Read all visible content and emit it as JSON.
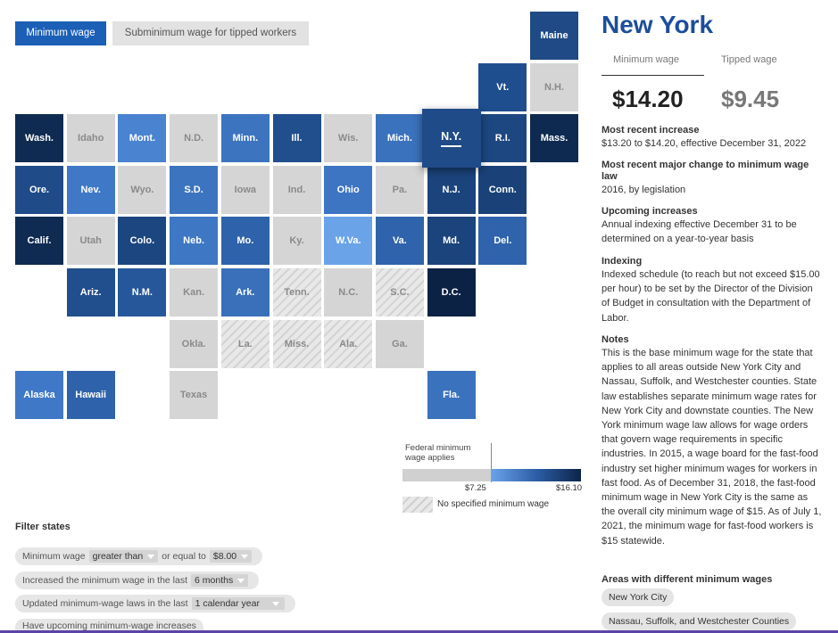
{
  "toggles": {
    "minimum": "Minimum wage",
    "tipped": "Subminimum wage for tipped workers"
  },
  "colors": {
    "accent": "#1b5fb6",
    "title": "#1b4e9b",
    "gray_tile": "#d5d5d5"
  },
  "states": [
    {
      "abbr": "Maine",
      "col": 10,
      "row": 0,
      "fill": "#1f4a86",
      "type": "color"
    },
    {
      "abbr": "Vt.",
      "col": 9,
      "row": 1,
      "fill": "#1f4e8f",
      "type": "color"
    },
    {
      "abbr": "N.H.",
      "col": 10,
      "row": 1,
      "fill": "#d5d5d5",
      "type": "gray"
    },
    {
      "abbr": "Wash.",
      "col": 0,
      "row": 2,
      "fill": "#0f2b52",
      "type": "color"
    },
    {
      "abbr": "Idaho",
      "col": 1,
      "row": 2,
      "fill": "#d5d5d5",
      "type": "gray"
    },
    {
      "abbr": "Mont.",
      "col": 2,
      "row": 2,
      "fill": "#4a83d0",
      "type": "color"
    },
    {
      "abbr": "N.D.",
      "col": 3,
      "row": 2,
      "fill": "#d5d5d5",
      "type": "gray"
    },
    {
      "abbr": "Minn.",
      "col": 4,
      "row": 2,
      "fill": "#3d74bf",
      "type": "color"
    },
    {
      "abbr": "Ill.",
      "col": 5,
      "row": 2,
      "fill": "#214e8c",
      "type": "color"
    },
    {
      "abbr": "Wis.",
      "col": 6,
      "row": 2,
      "fill": "#d5d5d5",
      "type": "gray"
    },
    {
      "abbr": "Mich.",
      "col": 7,
      "row": 2,
      "fill": "#3b72bd",
      "type": "color"
    },
    {
      "abbr": "N.Y.",
      "col": 8,
      "row": 2,
      "fill": "#1f4b89",
      "type": "color",
      "selected": true
    },
    {
      "abbr": "R.I.",
      "col": 9,
      "row": 2,
      "fill": "#1d4780",
      "type": "color"
    },
    {
      "abbr": "Mass.",
      "col": 10,
      "row": 2,
      "fill": "#0e2a50",
      "type": "color"
    },
    {
      "abbr": "Ore.",
      "col": 0,
      "row": 3,
      "fill": "#1f4b89",
      "type": "color"
    },
    {
      "abbr": "Nev.",
      "col": 1,
      "row": 3,
      "fill": "#3f78c6",
      "type": "color"
    },
    {
      "abbr": "Wyo.",
      "col": 2,
      "row": 3,
      "fill": "#d5d5d5",
      "type": "gray"
    },
    {
      "abbr": "S.D.",
      "col": 3,
      "row": 3,
      "fill": "#3d74bf",
      "type": "color"
    },
    {
      "abbr": "Iowa",
      "col": 4,
      "row": 3,
      "fill": "#d5d5d5",
      "type": "gray"
    },
    {
      "abbr": "Ind.",
      "col": 5,
      "row": 3,
      "fill": "#d5d5d5",
      "type": "gray"
    },
    {
      "abbr": "Ohio",
      "col": 6,
      "row": 3,
      "fill": "#3d75c2",
      "type": "color"
    },
    {
      "abbr": "Pa.",
      "col": 7,
      "row": 3,
      "fill": "#d5d5d5",
      "type": "gray"
    },
    {
      "abbr": "N.J.",
      "col": 8,
      "row": 3,
      "fill": "#1b447c",
      "type": "color"
    },
    {
      "abbr": "Conn.",
      "col": 9,
      "row": 3,
      "fill": "#1a4279",
      "type": "color"
    },
    {
      "abbr": "Calif.",
      "col": 0,
      "row": 4,
      "fill": "#0f2b52",
      "type": "color"
    },
    {
      "abbr": "Utah",
      "col": 1,
      "row": 4,
      "fill": "#d5d5d5",
      "type": "gray"
    },
    {
      "abbr": "Colo.",
      "col": 2,
      "row": 4,
      "fill": "#1c467f",
      "type": "color"
    },
    {
      "abbr": "Neb.",
      "col": 3,
      "row": 4,
      "fill": "#3e77c4",
      "type": "color"
    },
    {
      "abbr": "Mo.",
      "col": 4,
      "row": 4,
      "fill": "#2e62aa",
      "type": "color"
    },
    {
      "abbr": "Ky.",
      "col": 5,
      "row": 4,
      "fill": "#d5d5d5",
      "type": "gray"
    },
    {
      "abbr": "W.Va.",
      "col": 6,
      "row": 4,
      "fill": "#6aa3e8",
      "type": "color"
    },
    {
      "abbr": "Va.",
      "col": 7,
      "row": 4,
      "fill": "#2f63ab",
      "type": "color"
    },
    {
      "abbr": "Md.",
      "col": 8,
      "row": 4,
      "fill": "#1b447c",
      "type": "color"
    },
    {
      "abbr": "Del.",
      "col": 9,
      "row": 4,
      "fill": "#2f63ab",
      "type": "color"
    },
    {
      "abbr": "Ariz.",
      "col": 1,
      "row": 5,
      "fill": "#214e8c",
      "type": "color"
    },
    {
      "abbr": "N.M.",
      "col": 2,
      "row": 5,
      "fill": "#26579a",
      "type": "color"
    },
    {
      "abbr": "Kan.",
      "col": 3,
      "row": 5,
      "fill": "#d5d5d5",
      "type": "gray"
    },
    {
      "abbr": "Ark.",
      "col": 4,
      "row": 5,
      "fill": "#3a70ba",
      "type": "color"
    },
    {
      "abbr": "Tenn.",
      "col": 5,
      "row": 5,
      "type": "hatch"
    },
    {
      "abbr": "N.C.",
      "col": 6,
      "row": 5,
      "fill": "#d5d5d5",
      "type": "gray"
    },
    {
      "abbr": "S.C.",
      "col": 7,
      "row": 5,
      "type": "hatch"
    },
    {
      "abbr": "D.C.",
      "col": 8,
      "row": 5,
      "fill": "#0c2245",
      "type": "color"
    },
    {
      "abbr": "Okla.",
      "col": 3,
      "row": 6,
      "fill": "#d5d5d5",
      "type": "gray"
    },
    {
      "abbr": "La.",
      "col": 4,
      "row": 6,
      "type": "hatch"
    },
    {
      "abbr": "Miss.",
      "col": 5,
      "row": 6,
      "type": "hatch"
    },
    {
      "abbr": "Ala.",
      "col": 6,
      "row": 6,
      "type": "hatch"
    },
    {
      "abbr": "Ga.",
      "col": 7,
      "row": 6,
      "fill": "#d5d5d5",
      "type": "gray"
    },
    {
      "abbr": "Alaska",
      "col": 0,
      "row": 7,
      "fill": "#3f78c6",
      "type": "color"
    },
    {
      "abbr": "Hawaii",
      "col": 1,
      "row": 7,
      "fill": "#2e62aa",
      "type": "color"
    },
    {
      "abbr": "Texas",
      "col": 3,
      "row": 7,
      "fill": "#d5d5d5",
      "type": "gray"
    },
    {
      "abbr": "Fla.",
      "col": 8,
      "row": 7,
      "fill": "#3b72bd",
      "type": "color"
    }
  ],
  "legend": {
    "federal": "Federal minimum wage applies",
    "low": "$7.25",
    "high": "$16.10",
    "none": "No specified minimum wage"
  },
  "filters": {
    "title": "Filter states",
    "row1": {
      "pre": "Minimum wage",
      "op": "greater than",
      "mid": "or equal to",
      "amount": "$8.00"
    },
    "row2": {
      "pre": "Increased the minimum wage in the last",
      "period": "6 months"
    },
    "row3": {
      "pre": "Updated minimum-wage laws in the last",
      "period": "1 calendar year"
    },
    "row4": {
      "pre": "Have upcoming minimum-wage increases"
    }
  },
  "panel": {
    "state": "New York",
    "min_label": "Minimum wage",
    "tip_label": "Tipped wage",
    "min_value": "$14.20",
    "tip_value": "$9.45",
    "recent_h": "Most recent increase",
    "recent_t": "$13.20 to $14.20, effective December 31, 2022",
    "major_h": "Most recent major change to minimum wage law",
    "major_t": "2016, by legislation",
    "upcoming_h": "Upcoming increases",
    "upcoming_t": "Annual indexing effective December 31 to be determined on a year-to-year basis",
    "indexing_h": "Indexing",
    "indexing_t": "Indexed schedule (to reach but not exceed $15.00 per hour) to be set by the Director of the Division of Budget in consultation with the Department of Labor.",
    "notes_h": "Notes",
    "notes_t": "This is the base minimum wage for the state that applies to all areas outside New York City and Nassau, Suffolk, and Westchester counties. State law establishes separate minimum wage rates for New York City and downstate counties. The New York minimum wage law allows for wage orders that govern wage requirements in specific industries. In 2015, a wage board for the fast-food industry set higher minimum wages for workers in fast food. As of December 31, 2018, the fast-food minimum wage in New York City is the same as the overall city minimum wage of $15. As of July 1, 2021, the minimum wage for fast-food workers is $15 statewide.",
    "areas_h": "Areas with different minimum wages",
    "areas": [
      "New York City",
      "Nassau, Suffolk, and Westchester Counties"
    ]
  }
}
